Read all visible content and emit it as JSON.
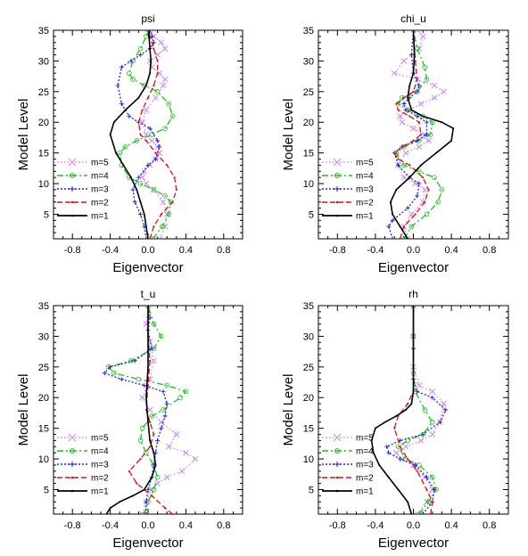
{
  "chart_data": [
    {
      "type": "line",
      "title": "psi",
      "xlabel": "Eigenvector",
      "ylabel": "Model Level",
      "xlim": [
        -1.0,
        1.0
      ],
      "ylim": [
        1,
        35
      ],
      "xticks": [
        "-0.8",
        "-0.4",
        "0.0",
        "0.4",
        "0.8"
      ],
      "yticks": [
        "5",
        "10",
        "15",
        "20",
        "25",
        "30",
        "35"
      ],
      "legend_position": "bottom-left",
      "series": [
        {
          "name": "m=5",
          "color": "#cc88ee",
          "style": "dotted-x",
          "x": [
            0.12,
            0.18,
            0.2,
            0.16,
            0.06,
            -0.02,
            -0.06,
            -0.04,
            0.02,
            0.08,
            0.12,
            0.1,
            0.04,
            -0.02,
            -0.06,
            -0.02,
            0.08,
            0.16,
            0.18,
            0.12,
            0.04,
            0.02,
            0.1,
            0.18,
            0.14,
            0.06,
            0.02
          ],
          "y": [
            1,
            3,
            5,
            7,
            9,
            10,
            11,
            12,
            13,
            14,
            15,
            16,
            17,
            18,
            20,
            22,
            24,
            26,
            27,
            28,
            29,
            30,
            31,
            32,
            33,
            34,
            35
          ]
        },
        {
          "name": "m=4",
          "color": "#22bb22",
          "style": "dash-dot",
          "x": [
            0.05,
            0.15,
            0.22,
            0.24,
            0.18,
            0.06,
            -0.08,
            -0.2,
            -0.28,
            -0.3,
            -0.24,
            -0.12,
            0.04,
            0.18,
            0.26,
            0.22,
            0.1,
            -0.04,
            -0.16,
            -0.2,
            -0.16,
            -0.08,
            -0.02,
            0.0
          ],
          "y": [
            1,
            3,
            5,
            7,
            8,
            9,
            10,
            11,
            13,
            15,
            16,
            17,
            18,
            19,
            21,
            23,
            25,
            26,
            27,
            28,
            30,
            32,
            34,
            35
          ]
        },
        {
          "name": "m=3",
          "color": "#2222dd",
          "style": "dotted-star",
          "x": [
            -0.02,
            -0.04,
            -0.08,
            -0.14,
            -0.16,
            -0.1,
            0.0,
            0.08,
            0.12,
            0.1,
            0.02,
            -0.1,
            -0.2,
            -0.28,
            -0.32,
            -0.28,
            -0.18,
            -0.08,
            0.02,
            0.06,
            0.04,
            0.02
          ],
          "y": [
            1,
            3,
            5,
            7,
            9,
            11,
            13,
            14,
            16,
            17,
            19,
            20,
            21,
            23,
            26,
            29,
            30,
            31,
            32,
            33,
            34,
            35
          ]
        },
        {
          "name": "m=2",
          "color": "#dd1111",
          "style": "dashed",
          "x": [
            0.02,
            0.06,
            0.14,
            0.26,
            0.3,
            0.28,
            0.2,
            0.08,
            -0.02,
            -0.08,
            -0.1,
            -0.06,
            0.0,
            0.06,
            0.1,
            0.1,
            0.06,
            0.02,
            0.0
          ],
          "y": [
            1,
            3,
            5,
            7,
            9,
            11,
            13,
            15,
            17,
            18,
            20,
            22,
            24,
            26,
            28,
            30,
            32,
            34,
            35
          ]
        },
        {
          "name": "m=1",
          "color": "#000000",
          "style": "solid",
          "x": [
            0.0,
            -0.02,
            -0.04,
            -0.08,
            -0.12,
            -0.18,
            -0.26,
            -0.34,
            -0.4,
            -0.36,
            -0.24,
            -0.1,
            -0.02,
            0.02,
            0.03,
            0.02,
            0.01,
            0.01
          ],
          "y": [
            1,
            3,
            5,
            7,
            9,
            11,
            13,
            15,
            18,
            20,
            22,
            24,
            26,
            28,
            30,
            32,
            34,
            35
          ]
        }
      ]
    },
    {
      "type": "line",
      "title": "chi_u",
      "xlabel": "Eigenvector",
      "ylabel": "Model Level",
      "xlim": [
        -1.0,
        1.0
      ],
      "ylim": [
        1,
        35
      ],
      "xticks": [
        "-0.8",
        "-0.4",
        "0.0",
        "0.4",
        "0.8"
      ],
      "yticks": [
        "5",
        "10",
        "15",
        "20",
        "25",
        "30",
        "35"
      ],
      "legend_position": "bottom-left",
      "series": [
        {
          "name": "m=5",
          "color": "#cc88ee",
          "style": "dotted-x",
          "x": [
            -0.06,
            -0.1,
            -0.02,
            0.1,
            0.12,
            0.02,
            -0.1,
            -0.16,
            -0.08,
            0.06,
            0.16,
            0.12,
            0.0,
            -0.12,
            -0.14,
            -0.04,
            0.08,
            0.22,
            0.32,
            0.22,
            0.04,
            -0.2,
            -0.1,
            0.06,
            0.1,
            0.04
          ],
          "y": [
            1,
            3,
            5,
            7,
            9,
            10,
            11,
            13,
            15,
            16,
            17,
            18,
            19,
            20,
            21,
            22,
            23,
            24,
            25,
            26,
            27,
            28,
            30,
            32,
            34,
            35
          ]
        },
        {
          "name": "m=4",
          "color": "#22bb22",
          "style": "dash-dot",
          "x": [
            -0.1,
            -0.02,
            0.14,
            0.26,
            0.3,
            0.22,
            0.06,
            -0.1,
            -0.18,
            -0.1,
            0.06,
            0.18,
            0.2,
            0.1,
            -0.06,
            -0.16,
            -0.12,
            0.04,
            0.14,
            0.12,
            0.04,
            0.0
          ],
          "y": [
            1,
            3,
            5,
            7,
            9,
            11,
            12,
            13,
            15,
            16,
            17,
            18,
            20,
            21,
            22,
            23,
            24,
            25,
            27,
            29,
            32,
            35
          ]
        },
        {
          "name": "m=3",
          "color": "#2222dd",
          "style": "dotted-star",
          "x": [
            -0.22,
            -0.26,
            -0.22,
            -0.06,
            0.04,
            0.06,
            -0.04,
            -0.16,
            -0.2,
            -0.12,
            0.04,
            0.14,
            0.14,
            0.04,
            -0.08,
            -0.1,
            -0.04,
            0.04,
            0.06,
            0.0,
            -0.02,
            0.0
          ],
          "y": [
            1,
            3,
            4,
            6,
            8,
            10,
            11,
            13,
            15,
            16,
            17,
            18,
            20,
            21,
            22,
            23,
            24,
            25,
            26,
            28,
            31,
            35
          ]
        },
        {
          "name": "m=2",
          "color": "#dd1111",
          "style": "dashed",
          "x": [
            -0.14,
            -0.1,
            0.02,
            0.12,
            0.16,
            0.1,
            -0.04,
            -0.16,
            -0.2,
            -0.12,
            0.0,
            0.08,
            0.06,
            -0.04,
            -0.16,
            -0.18,
            -0.1,
            0.0,
            0.04,
            0.02,
            0.0
          ],
          "y": [
            1,
            3,
            5,
            7,
            9,
            11,
            13,
            14,
            15,
            16,
            17,
            18,
            20,
            21,
            22,
            23,
            24,
            25,
            27,
            30,
            35
          ]
        },
        {
          "name": "m=1",
          "color": "#000000",
          "style": "solid",
          "x": [
            -0.06,
            -0.14,
            -0.22,
            -0.24,
            -0.18,
            -0.04,
            0.08,
            0.24,
            0.4,
            0.42,
            0.3,
            0.1,
            -0.02,
            -0.06,
            -0.04,
            0.0,
            0.01,
            0.0
          ],
          "y": [
            1,
            3,
            5,
            7,
            9,
            11,
            13,
            15,
            17,
            19,
            20,
            21,
            22,
            24,
            26,
            28,
            31,
            35
          ]
        }
      ]
    },
    {
      "type": "line",
      "title": "t_u",
      "xlabel": "Eigenvector",
      "ylabel": "Model Level",
      "xlim": [
        -1.0,
        1.0
      ],
      "ylim": [
        1,
        35
      ],
      "xticks": [
        "-0.8",
        "-0.4",
        "0.0",
        "0.4",
        "0.8"
      ],
      "yticks": [
        "5",
        "10",
        "15",
        "20",
        "25",
        "30",
        "35"
      ],
      "legend_position": "bottom-left",
      "series": [
        {
          "name": "m=5",
          "color": "#cc88ee",
          "style": "dotted-x",
          "x": [
            -0.06,
            -0.02,
            0.04,
            0.1,
            0.2,
            0.36,
            0.5,
            0.4,
            0.22,
            0.3,
            0.14,
            0.02,
            -0.06,
            0.02,
            0.06,
            0.02,
            -0.02,
            0.0
          ],
          "y": [
            1,
            3,
            5,
            6,
            7,
            8,
            10,
            11,
            12,
            14,
            16,
            18,
            20,
            23,
            26,
            29,
            32,
            35
          ]
        },
        {
          "name": "m=4",
          "color": "#22bb22",
          "style": "dash-dot",
          "x": [
            -0.04,
            0.0,
            0.06,
            0.1,
            0.06,
            -0.02,
            -0.08,
            -0.06,
            0.04,
            0.16,
            0.34,
            0.4,
            0.2,
            -0.1,
            -0.36,
            -0.42,
            -0.18,
            0.06,
            0.14,
            0.06,
            0.0
          ],
          "y": [
            1,
            3,
            5,
            7,
            9,
            11,
            13,
            15,
            17,
            18,
            20,
            21,
            22,
            23,
            24,
            25,
            26,
            28,
            30,
            32,
            35
          ]
        },
        {
          "name": "m=3",
          "color": "#2222dd",
          "style": "dotted-star",
          "x": [
            -0.02,
            -0.02,
            0.0,
            0.04,
            0.06,
            0.08,
            0.1,
            0.14,
            0.18,
            0.2,
            0.16,
            -0.04,
            -0.28,
            -0.46,
            -0.4,
            -0.14,
            0.04,
            0.0,
            0.02,
            0.0
          ],
          "y": [
            1,
            3,
            5,
            7,
            9,
            11,
            13,
            15,
            17,
            19,
            21,
            22,
            23,
            24,
            25,
            26,
            28,
            31,
            33,
            35
          ]
        },
        {
          "name": "m=2",
          "color": "#dd1111",
          "style": "dashed",
          "x": [
            0.26,
            0.18,
            0.04,
            -0.12,
            -0.2,
            -0.08,
            0.02,
            0.06,
            0.02,
            -0.02,
            0.0,
            0.02,
            0.0,
            0.0
          ],
          "y": [
            1,
            2,
            4,
            6,
            8,
            10,
            12,
            14,
            16,
            18,
            22,
            26,
            30,
            35
          ]
        },
        {
          "name": "m=1",
          "color": "#000000",
          "style": "solid",
          "x": [
            -0.44,
            -0.4,
            -0.3,
            -0.16,
            -0.04,
            0.04,
            0.08,
            0.06,
            0.02,
            0.0,
            -0.02,
            0.0,
            0.0
          ],
          "y": [
            1,
            2,
            3,
            4,
            5,
            7,
            9,
            11,
            13,
            16,
            20,
            25,
            35
          ]
        }
      ]
    },
    {
      "type": "line",
      "title": "rh",
      "xlabel": "Eigenvector",
      "ylabel": "Model Level",
      "xlim": [
        -1.0,
        1.0
      ],
      "ylim": [
        1,
        35
      ],
      "xticks": [
        "-0.8",
        "-0.4",
        "0.0",
        "0.4",
        "0.8"
      ],
      "yticks": [
        "5",
        "10",
        "15",
        "20",
        "25",
        "30",
        "35"
      ],
      "legend_position": "bottom-left",
      "series": [
        {
          "name": "m=5",
          "color": "#cc88ee",
          "style": "dotted-x",
          "x": [
            0.04,
            0.14,
            0.2,
            0.12,
            0.0,
            -0.12,
            -0.18,
            -0.08,
            0.08,
            0.2,
            0.28,
            0.32,
            0.2,
            0.06,
            0.0,
            0.0,
            0.0
          ],
          "y": [
            1,
            3,
            5,
            7,
            9,
            10,
            11,
            12,
            13,
            14,
            16,
            19,
            21,
            22,
            25,
            30,
            35
          ]
        },
        {
          "name": "m=4",
          "color": "#22bb22",
          "style": "dash-dot",
          "x": [
            0.06,
            0.16,
            0.24,
            0.2,
            0.06,
            -0.08,
            -0.16,
            -0.06,
            0.1,
            0.2,
            0.12,
            0.02,
            0.0,
            0.0,
            0.0
          ],
          "y": [
            1,
            3,
            5,
            7,
            9,
            10,
            12,
            13,
            14,
            16,
            18,
            21,
            24,
            30,
            35
          ]
        },
        {
          "name": "m=3",
          "color": "#2222dd",
          "style": "dotted-star",
          "x": [
            0.1,
            0.2,
            0.22,
            0.14,
            0.02,
            -0.14,
            -0.26,
            -0.28,
            -0.14,
            0.1,
            0.28,
            0.34,
            0.2,
            0.04,
            0.0,
            0.0,
            0.0
          ],
          "y": [
            1,
            3,
            5,
            7,
            9,
            10,
            11,
            12,
            13,
            14,
            16,
            18,
            20,
            21,
            23,
            28,
            35
          ]
        },
        {
          "name": "m=2",
          "color": "#dd1111",
          "style": "dashed",
          "x": [
            0.18,
            0.2,
            0.14,
            0.04,
            -0.06,
            -0.14,
            -0.2,
            -0.16,
            -0.06,
            0.0,
            0.0,
            0.0,
            0.0
          ],
          "y": [
            1,
            3,
            5,
            8,
            10,
            12,
            15,
            17,
            19,
            21,
            23,
            28,
            35
          ]
        },
        {
          "name": "m=1",
          "color": "#000000",
          "style": "solid",
          "x": [
            -0.02,
            -0.06,
            -0.16,
            -0.26,
            -0.36,
            -0.42,
            -0.44,
            -0.4,
            -0.3,
            -0.18,
            -0.08,
            -0.02,
            0.0,
            0.0,
            0.0
          ],
          "y": [
            1,
            3,
            5,
            7,
            9,
            11,
            13,
            15,
            16,
            17,
            18,
            19,
            21,
            28,
            35
          ]
        }
      ]
    }
  ]
}
